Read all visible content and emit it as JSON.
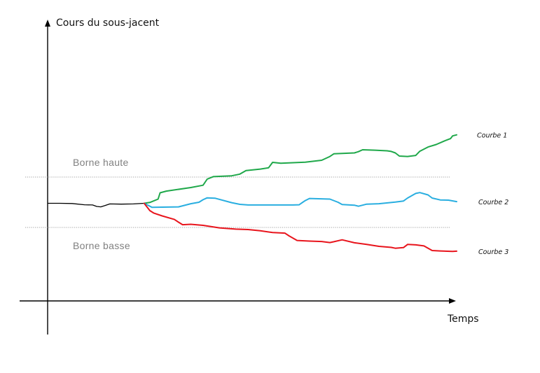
{
  "chart_data": {
    "type": "line",
    "title": "",
    "ylabel": "Cours du sous-jacent",
    "xlabel": "Temps",
    "xlim": [
      0,
      100
    ],
    "ylim": [
      0,
      100
    ],
    "grid": false,
    "legend_placement": "right",
    "colors": {
      "axis": "#000000",
      "bound": "#a0a0a0",
      "prefix": "#000000",
      "courbe1": "#1fa84a",
      "courbe2": "#29aee0",
      "courbe3": "#e8141c"
    },
    "bounds": [
      {
        "name": "Borne haute",
        "value": 59
      },
      {
        "name": "Borne basse",
        "value": 35
      }
    ],
    "prefix": {
      "name": "",
      "points": [
        [
          0,
          46.5
        ],
        [
          3,
          46.5
        ],
        [
          6,
          46.4
        ],
        [
          9,
          45.8
        ],
        [
          11,
          45.7
        ],
        [
          12,
          45.0
        ],
        [
          13,
          44.8
        ],
        [
          14,
          45.4
        ],
        [
          15.2,
          46.2
        ],
        [
          18,
          46.1
        ],
        [
          21,
          46.2
        ],
        [
          23.6,
          46.5
        ]
      ]
    },
    "series": [
      {
        "name": "Courbe 1",
        "points": [
          [
            23.6,
            46.5
          ],
          [
            25,
            46.9
          ],
          [
            27,
            48.5
          ],
          [
            27.5,
            51.5
          ],
          [
            29,
            52.3
          ],
          [
            35,
            54.0
          ],
          [
            38,
            55.1
          ],
          [
            39,
            58.0
          ],
          [
            40.5,
            59.2
          ],
          [
            45,
            59.6
          ],
          [
            47,
            60.4
          ],
          [
            48.5,
            62.1
          ],
          [
            52,
            62.8
          ],
          [
            54,
            63.4
          ],
          [
            55,
            66.0
          ],
          [
            57,
            65.6
          ],
          [
            63,
            66.1
          ],
          [
            67,
            67.0
          ],
          [
            69,
            68.8
          ],
          [
            70,
            70.1
          ],
          [
            75,
            70.5
          ],
          [
            76,
            71.1
          ],
          [
            77,
            72.0
          ],
          [
            80,
            71.8
          ],
          [
            83,
            71.5
          ],
          [
            84,
            71.2
          ],
          [
            85,
            70.5
          ],
          [
            86,
            69.0
          ],
          [
            88,
            68.8
          ],
          [
            90,
            69.3
          ],
          [
            91,
            71.3
          ],
          [
            93,
            73.3
          ],
          [
            95,
            74.5
          ],
          [
            97,
            76.2
          ],
          [
            98.5,
            77.3
          ],
          [
            99,
            78.6
          ],
          [
            100,
            79.1
          ]
        ]
      },
      {
        "name": "Courbe 2",
        "points": [
          [
            23.6,
            46.5
          ],
          [
            25.5,
            44.6
          ],
          [
            32,
            44.8
          ],
          [
            35,
            46.3
          ],
          [
            37,
            47.0
          ],
          [
            38,
            48.2
          ],
          [
            39,
            49.1
          ],
          [
            41,
            48.9
          ],
          [
            45,
            46.8
          ],
          [
            47,
            46.0
          ],
          [
            49,
            45.7
          ],
          [
            60,
            45.7
          ],
          [
            61.5,
            45.8
          ],
          [
            62,
            46.5
          ],
          [
            63,
            47.8
          ],
          [
            64,
            48.8
          ],
          [
            69,
            48.5
          ],
          [
            71,
            47.0
          ],
          [
            72,
            45.9
          ],
          [
            75,
            45.6
          ],
          [
            76,
            45.1
          ],
          [
            78,
            46.1
          ],
          [
            81,
            46.3
          ],
          [
            85,
            47.1
          ],
          [
            87,
            47.6
          ],
          [
            88,
            49.0
          ],
          [
            90,
            51.2
          ],
          [
            91,
            51.6
          ],
          [
            93,
            50.5
          ],
          [
            94,
            49.0
          ],
          [
            96,
            48.1
          ],
          [
            98,
            48.0
          ],
          [
            100,
            47.3
          ]
        ]
      },
      {
        "name": "Courbe 3",
        "points": [
          [
            23.6,
            46.5
          ],
          [
            25,
            43.0
          ],
          [
            26,
            41.8
          ],
          [
            28,
            40.5
          ],
          [
            31,
            38.8
          ],
          [
            32,
            37.5
          ],
          [
            33,
            36.3
          ],
          [
            35,
            36.5
          ],
          [
            38,
            36.0
          ],
          [
            42,
            34.8
          ],
          [
            46,
            34.2
          ],
          [
            49,
            34.0
          ],
          [
            52,
            33.4
          ],
          [
            55,
            32.6
          ],
          [
            58,
            32.3
          ],
          [
            59,
            31.0
          ],
          [
            61,
            28.8
          ],
          [
            64,
            28.5
          ],
          [
            67,
            28.3
          ],
          [
            69,
            27.8
          ],
          [
            70,
            28.2
          ],
          [
            72,
            29.1
          ],
          [
            75,
            27.7
          ],
          [
            78,
            26.9
          ],
          [
            81,
            26.0
          ],
          [
            84,
            25.5
          ],
          [
            85,
            25.1
          ],
          [
            87,
            25.4
          ],
          [
            88,
            26.9
          ],
          [
            90,
            26.7
          ],
          [
            92,
            26.2
          ],
          [
            94,
            24.0
          ],
          [
            96,
            23.8
          ],
          [
            99,
            23.6
          ],
          [
            100,
            23.7
          ]
        ]
      }
    ]
  }
}
